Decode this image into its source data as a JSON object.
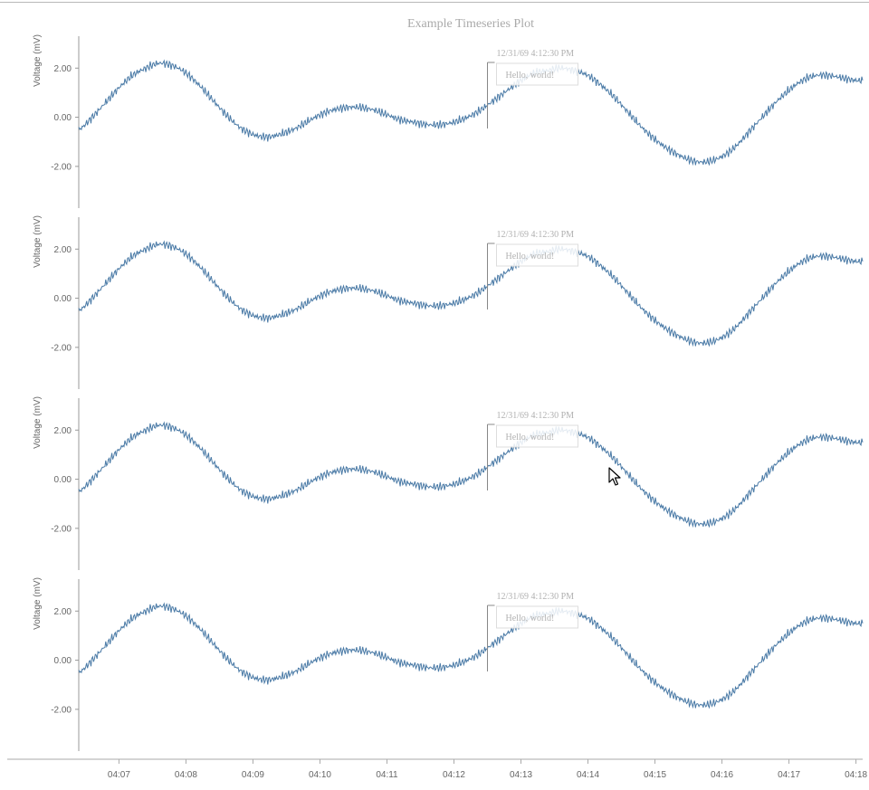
{
  "title": "Example Timeseries Plot",
  "chart_data": {
    "type": "line",
    "layout": "four vertically stacked panels sharing one time axis",
    "title": "Example Timeseries Plot",
    "xlabel": "",
    "x_unit": "time (HH:MM)",
    "x_ticks": [
      "04:07",
      "04:08",
      "04:09",
      "04:10",
      "04:11",
      "04:12",
      "04:13",
      "04:14",
      "04:15",
      "04:16",
      "04:17",
      "04:18"
    ],
    "xlim": [
      "04:06.4",
      "04:18.1"
    ],
    "colors": {
      "line": "#4a7aa6",
      "axis": "#999999",
      "annotation": "#b0b0b0"
    },
    "grid": false,
    "legend": "none",
    "panels": [
      {
        "ylabel": "Voltage (mV)",
        "y_ticks": [
          "2.00",
          "0.00",
          "-2.00"
        ],
        "ylim": [
          -3.7,
          3.3
        ],
        "annotation": {
          "time": "12/31/69 4:12:30 PM",
          "x": 12.5,
          "text": "Hello, world!"
        },
        "series": [
          {
            "x": [
              6.4,
              6.6,
              6.8,
              7.0,
              7.2,
              7.4,
              7.6,
              7.8,
              8.0,
              8.2,
              8.4,
              8.6,
              8.8,
              9.0,
              9.2,
              9.4,
              9.6,
              9.8,
              10.0,
              10.2,
              10.4,
              10.6,
              10.8,
              11.0,
              11.2,
              11.4,
              11.6,
              11.8,
              12.0,
              12.2,
              12.4,
              12.6,
              12.8,
              13.0,
              13.2,
              13.4,
              13.6,
              13.8,
              14.0,
              14.2,
              14.4,
              14.6,
              14.8,
              15.0,
              15.2,
              15.4,
              15.6,
              15.8,
              16.0,
              16.2,
              16.4,
              16.6,
              16.8,
              17.0,
              17.2,
              17.4,
              17.6,
              17.8,
              18.0,
              18.1
            ],
            "y": [
              -0.5,
              0.0,
              0.6,
              1.2,
              1.7,
              2.0,
              2.2,
              2.1,
              1.8,
              1.3,
              0.7,
              0.1,
              -0.4,
              -0.7,
              -0.8,
              -0.7,
              -0.5,
              -0.2,
              0.1,
              0.3,
              0.4,
              0.4,
              0.3,
              0.1,
              -0.1,
              -0.2,
              -0.3,
              -0.3,
              -0.2,
              0.0,
              0.3,
              0.7,
              1.1,
              1.5,
              1.8,
              1.9,
              2.0,
              1.9,
              1.7,
              1.3,
              0.8,
              0.2,
              -0.4,
              -0.9,
              -1.3,
              -1.6,
              -1.8,
              -1.8,
              -1.6,
              -1.2,
              -0.6,
              0.0,
              0.6,
              1.1,
              1.5,
              1.7,
              1.7,
              1.6,
              1.5,
              1.5
            ]
          }
        ]
      },
      {
        "ylabel": "Voltage (mV)",
        "y_ticks": [
          "2.00",
          "0.00",
          "-2.00"
        ],
        "ylim": [
          -3.7,
          3.3
        ],
        "annotation": {
          "time": "12/31/69 4:12:30 PM",
          "x": 12.5,
          "text": "Hello, world!"
        },
        "series": [
          {
            "x": [
              6.4,
              6.6,
              6.8,
              7.0,
              7.2,
              7.4,
              7.6,
              7.8,
              8.0,
              8.2,
              8.4,
              8.6,
              8.8,
              9.0,
              9.2,
              9.4,
              9.6,
              9.8,
              10.0,
              10.2,
              10.4,
              10.6,
              10.8,
              11.0,
              11.2,
              11.4,
              11.6,
              11.8,
              12.0,
              12.2,
              12.4,
              12.6,
              12.8,
              13.0,
              13.2,
              13.4,
              13.6,
              13.8,
              14.0,
              14.2,
              14.4,
              14.6,
              14.8,
              15.0,
              15.2,
              15.4,
              15.6,
              15.8,
              16.0,
              16.2,
              16.4,
              16.6,
              16.8,
              17.0,
              17.2,
              17.4,
              17.6,
              17.8,
              18.0,
              18.1
            ],
            "y": [
              -0.5,
              0.0,
              0.6,
              1.2,
              1.7,
              2.0,
              2.2,
              2.1,
              1.8,
              1.3,
              0.7,
              0.1,
              -0.4,
              -0.7,
              -0.8,
              -0.7,
              -0.5,
              -0.2,
              0.1,
              0.3,
              0.4,
              0.4,
              0.3,
              0.1,
              -0.1,
              -0.2,
              -0.3,
              -0.3,
              -0.2,
              0.0,
              0.3,
              0.7,
              1.1,
              1.5,
              1.8,
              1.9,
              2.0,
              1.9,
              1.7,
              1.3,
              0.8,
              0.2,
              -0.4,
              -0.9,
              -1.3,
              -1.6,
              -1.8,
              -1.8,
              -1.6,
              -1.2,
              -0.6,
              0.0,
              0.6,
              1.1,
              1.5,
              1.7,
              1.7,
              1.6,
              1.5,
              1.5
            ]
          }
        ]
      },
      {
        "ylabel": "Voltage (mV)",
        "y_ticks": [
          "2.00",
          "0.00",
          "-2.00"
        ],
        "ylim": [
          -3.7,
          3.3
        ],
        "annotation": {
          "time": "12/31/69 4:12:30 PM",
          "x": 12.5,
          "text": "Hello, world!"
        },
        "series": [
          {
            "x": [
              6.4,
              6.6,
              6.8,
              7.0,
              7.2,
              7.4,
              7.6,
              7.8,
              8.0,
              8.2,
              8.4,
              8.6,
              8.8,
              9.0,
              9.2,
              9.4,
              9.6,
              9.8,
              10.0,
              10.2,
              10.4,
              10.6,
              10.8,
              11.0,
              11.2,
              11.4,
              11.6,
              11.8,
              12.0,
              12.2,
              12.4,
              12.6,
              12.8,
              13.0,
              13.2,
              13.4,
              13.6,
              13.8,
              14.0,
              14.2,
              14.4,
              14.6,
              14.8,
              15.0,
              15.2,
              15.4,
              15.6,
              15.8,
              16.0,
              16.2,
              16.4,
              16.6,
              16.8,
              17.0,
              17.2,
              17.4,
              17.6,
              17.8,
              18.0,
              18.1
            ],
            "y": [
              -0.5,
              0.0,
              0.6,
              1.2,
              1.7,
              2.0,
              2.2,
              2.1,
              1.8,
              1.3,
              0.7,
              0.1,
              -0.4,
              -0.7,
              -0.8,
              -0.7,
              -0.5,
              -0.2,
              0.1,
              0.3,
              0.4,
              0.4,
              0.3,
              0.1,
              -0.1,
              -0.2,
              -0.3,
              -0.3,
              -0.2,
              0.0,
              0.3,
              0.7,
              1.1,
              1.5,
              1.8,
              1.9,
              2.0,
              1.9,
              1.7,
              1.3,
              0.8,
              0.2,
              -0.4,
              -0.9,
              -1.3,
              -1.6,
              -1.8,
              -1.8,
              -1.6,
              -1.2,
              -0.6,
              0.0,
              0.6,
              1.1,
              1.5,
              1.7,
              1.7,
              1.6,
              1.5,
              1.5
            ]
          }
        ]
      },
      {
        "ylabel": "Voltage (mV)",
        "y_ticks": [
          "2.00",
          "0.00",
          "-2.00"
        ],
        "ylim": [
          -3.7,
          3.3
        ],
        "annotation": {
          "time": "12/31/69 4:12:30 PM",
          "x": 12.5,
          "text": "Hello, world!"
        },
        "series": [
          {
            "x": [
              6.4,
              6.6,
              6.8,
              7.0,
              7.2,
              7.4,
              7.6,
              7.8,
              8.0,
              8.2,
              8.4,
              8.6,
              8.8,
              9.0,
              9.2,
              9.4,
              9.6,
              9.8,
              10.0,
              10.2,
              10.4,
              10.6,
              10.8,
              11.0,
              11.2,
              11.4,
              11.6,
              11.8,
              12.0,
              12.2,
              12.4,
              12.6,
              12.8,
              13.0,
              13.2,
              13.4,
              13.6,
              13.8,
              14.0,
              14.2,
              14.4,
              14.6,
              14.8,
              15.0,
              15.2,
              15.4,
              15.6,
              15.8,
              16.0,
              16.2,
              16.4,
              16.6,
              16.8,
              17.0,
              17.2,
              17.4,
              17.6,
              17.8,
              18.0,
              18.1
            ],
            "y": [
              -0.5,
              0.0,
              0.6,
              1.2,
              1.7,
              2.0,
              2.2,
              2.1,
              1.8,
              1.3,
              0.7,
              0.1,
              -0.4,
              -0.7,
              -0.8,
              -0.7,
              -0.5,
              -0.2,
              0.1,
              0.3,
              0.4,
              0.4,
              0.3,
              0.1,
              -0.1,
              -0.2,
              -0.3,
              -0.3,
              -0.2,
              0.0,
              0.3,
              0.7,
              1.1,
              1.5,
              1.8,
              1.9,
              2.0,
              1.9,
              1.7,
              1.3,
              0.8,
              0.2,
              -0.4,
              -0.9,
              -1.3,
              -1.6,
              -1.8,
              -1.8,
              -1.6,
              -1.2,
              -0.6,
              0.0,
              0.6,
              1.1,
              1.5,
              1.7,
              1.7,
              1.6,
              1.5,
              1.5
            ]
          }
        ]
      }
    ]
  },
  "cursor": {
    "icon": "mouse-pointer-icon"
  }
}
